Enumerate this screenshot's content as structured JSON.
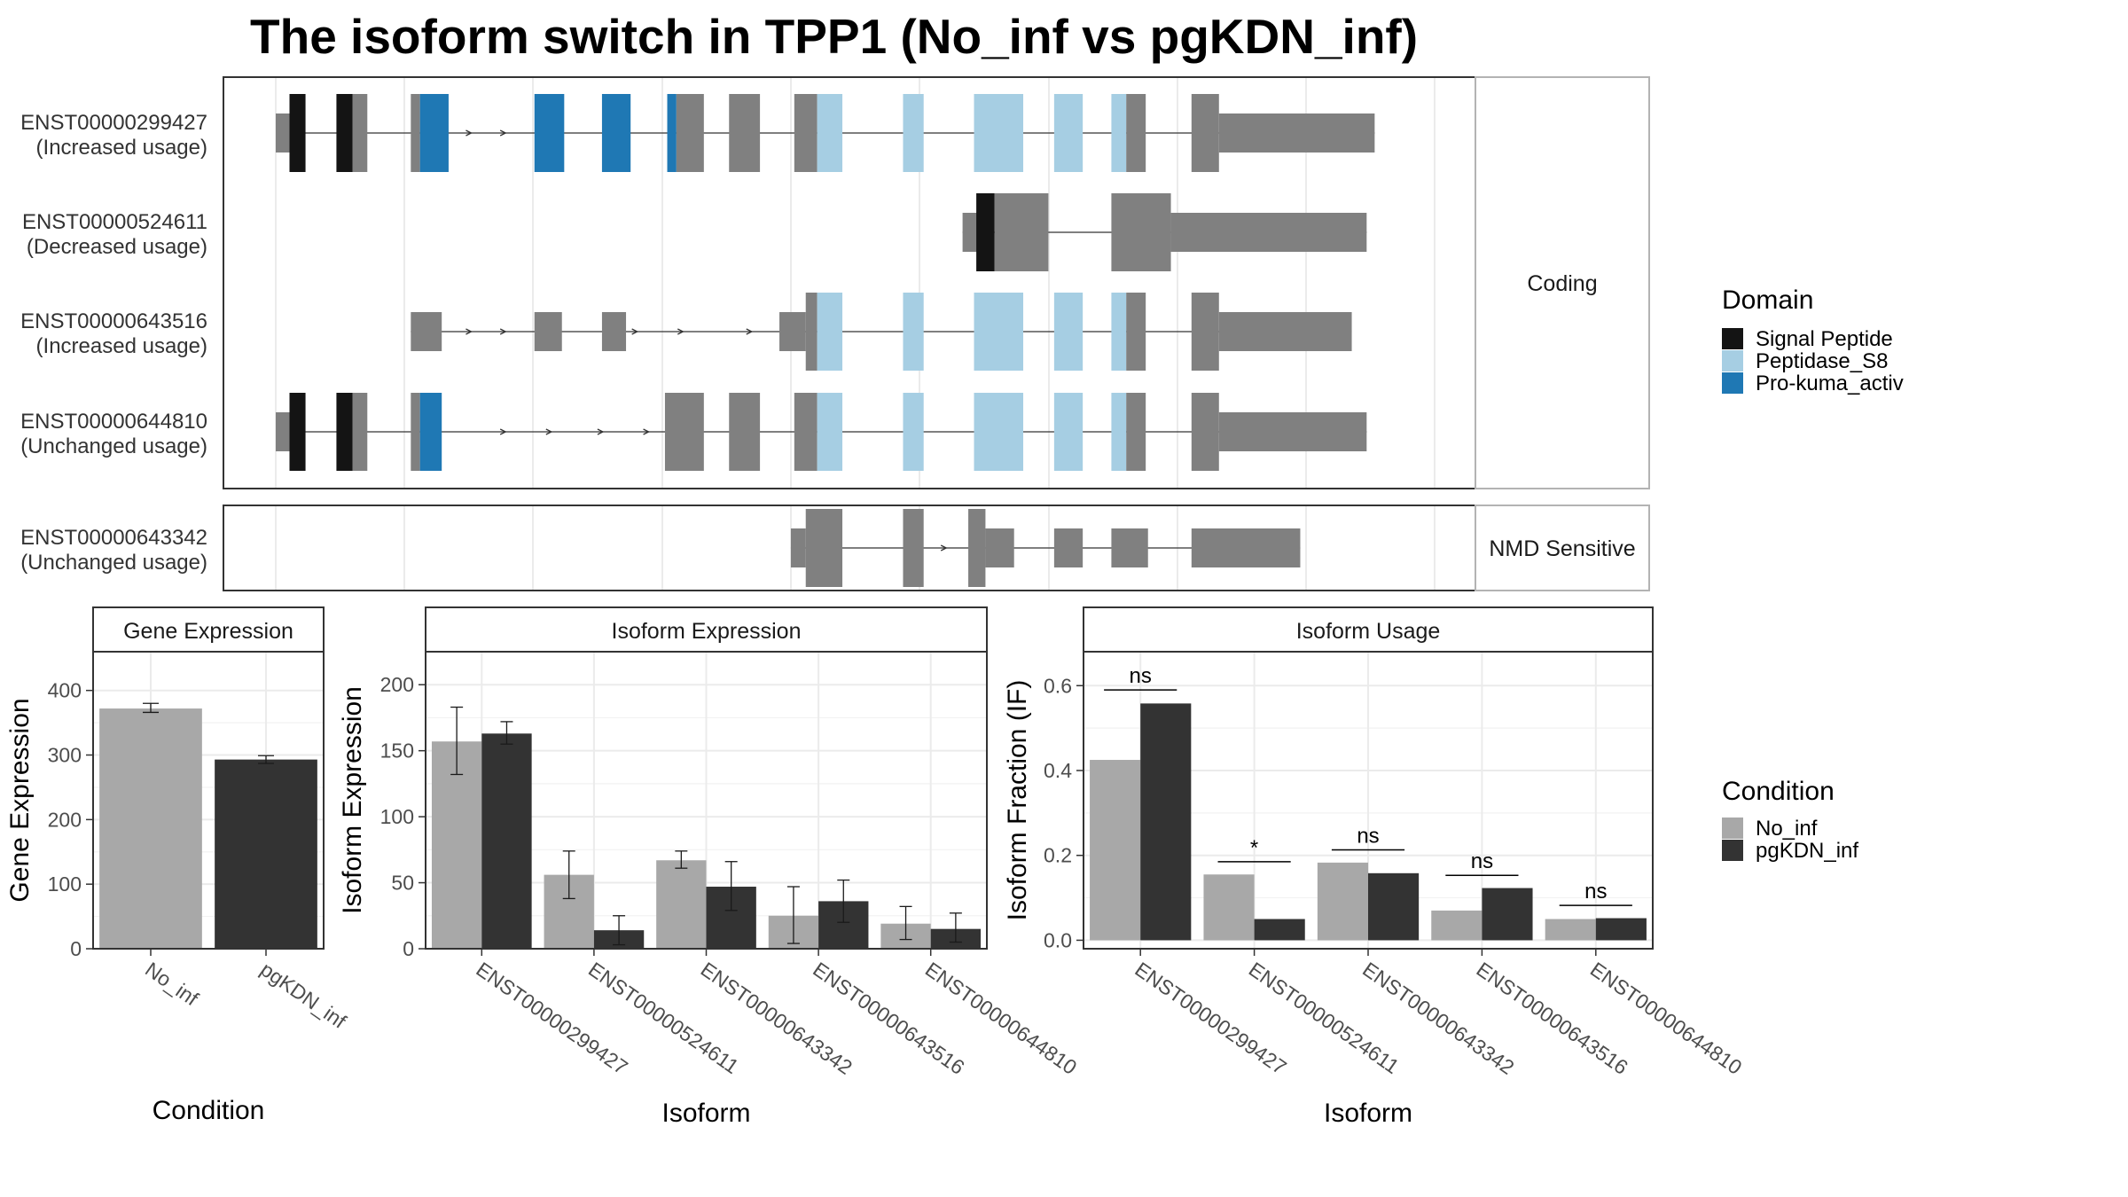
{
  "title": "The isoform switch in TPP1 (No_inf vs pgKDN_inf)",
  "colors": {
    "signal_peptide": "#141414",
    "peptidase_s8": "#a6cee3",
    "pro_kuma_activ": "#1f78b4",
    "exon": "#808080",
    "no_inf": "#a8a8a8",
    "pgkdn_inf": "#333333"
  },
  "structure": {
    "x_range": [
      0,
      100
    ],
    "groups": [
      {
        "label": "Coding",
        "transcripts": [
          {
            "id": "ENST00000299427",
            "usage": "(Increased usage)",
            "exons": [
              {
                "s": 0.0,
                "e": 2.1,
                "t": "utr"
              },
              {
                "s": 1.2,
                "e": 2.6,
                "t": "cds",
                "d": "sig"
              },
              {
                "s": 5.3,
                "e": 6.7,
                "t": "cds",
                "d": "sig"
              },
              {
                "s": 6.7,
                "e": 8.0,
                "t": "cds"
              },
              {
                "s": 11.8,
                "e": 12.6,
                "t": "cds"
              },
              {
                "s": 12.6,
                "e": 15.1,
                "t": "cds",
                "d": "pro"
              },
              {
                "s": 22.6,
                "e": 25.2,
                "t": "cds",
                "d": "pro"
              },
              {
                "s": 28.5,
                "e": 31.0,
                "t": "cds",
                "d": "pro"
              },
              {
                "s": 34.2,
                "e": 35.0,
                "t": "cds",
                "d": "pro"
              },
              {
                "s": 35.0,
                "e": 37.4,
                "t": "cds"
              },
              {
                "s": 39.6,
                "e": 42.3,
                "t": "cds"
              },
              {
                "s": 45.3,
                "e": 47.3,
                "t": "cds"
              },
              {
                "s": 47.3,
                "e": 49.5,
                "t": "cds",
                "d": "pep"
              },
              {
                "s": 54.8,
                "e": 56.6,
                "t": "cds",
                "d": "pep"
              },
              {
                "s": 61.0,
                "e": 65.3,
                "t": "cds",
                "d": "pep"
              },
              {
                "s": 68.0,
                "e": 70.5,
                "t": "cds",
                "d": "pep"
              },
              {
                "s": 73.0,
                "e": 74.3,
                "t": "cds",
                "d": "pep"
              },
              {
                "s": 74.3,
                "e": 76.0,
                "t": "cds"
              },
              {
                "s": 80.0,
                "e": 82.4,
                "t": "cds"
              },
              {
                "s": 82.4,
                "e": 96.0,
                "t": "utr"
              }
            ],
            "arrows": [
              17,
              20
            ]
          },
          {
            "id": "ENST00000524611",
            "usage": "(Decreased usage)",
            "exons": [
              {
                "s": 60.0,
                "e": 62.0,
                "t": "utr"
              },
              {
                "s": 61.2,
                "e": 62.8,
                "t": "cds",
                "d": "sig"
              },
              {
                "s": 62.8,
                "e": 67.5,
                "t": "cds"
              },
              {
                "s": 73.0,
                "e": 78.2,
                "t": "cds"
              },
              {
                "s": 78.2,
                "e": 95.3,
                "t": "utr"
              }
            ],
            "arrows": []
          },
          {
            "id": "ENST00000643516",
            "usage": "(Increased usage)",
            "exons": [
              {
                "s": 11.8,
                "e": 14.5,
                "t": "utr"
              },
              {
                "s": 22.6,
                "e": 25.0,
                "t": "utr"
              },
              {
                "s": 28.5,
                "e": 30.6,
                "t": "utr"
              },
              {
                "s": 44.0,
                "e": 46.3,
                "t": "utr"
              },
              {
                "s": 46.3,
                "e": 47.3,
                "t": "cds"
              },
              {
                "s": 47.3,
                "e": 49.5,
                "t": "cds",
                "d": "pep"
              },
              {
                "s": 54.8,
                "e": 56.6,
                "t": "cds",
                "d": "pep"
              },
              {
                "s": 61.0,
                "e": 65.3,
                "t": "cds",
                "d": "pep"
              },
              {
                "s": 68.0,
                "e": 70.5,
                "t": "cds",
                "d": "pep"
              },
              {
                "s": 73.0,
                "e": 74.3,
                "t": "cds",
                "d": "pep"
              },
              {
                "s": 74.3,
                "e": 76.0,
                "t": "cds"
              },
              {
                "s": 80.0,
                "e": 82.4,
                "t": "cds"
              },
              {
                "s": 82.4,
                "e": 94.0,
                "t": "utr"
              }
            ],
            "arrows": [
              17,
              20,
              31.5,
              35.5,
              41.5
            ]
          },
          {
            "id": "ENST00000644810",
            "usage": "(Unchanged usage)",
            "exons": [
              {
                "s": 0.0,
                "e": 2.1,
                "t": "utr"
              },
              {
                "s": 1.2,
                "e": 2.6,
                "t": "cds",
                "d": "sig"
              },
              {
                "s": 5.3,
                "e": 6.7,
                "t": "cds",
                "d": "sig"
              },
              {
                "s": 6.7,
                "e": 8.0,
                "t": "cds"
              },
              {
                "s": 11.8,
                "e": 12.6,
                "t": "cds"
              },
              {
                "s": 12.6,
                "e": 14.5,
                "t": "cds",
                "d": "pro"
              },
              {
                "s": 34.0,
                "e": 37.4,
                "t": "cds"
              },
              {
                "s": 39.6,
                "e": 42.3,
                "t": "cds"
              },
              {
                "s": 45.3,
                "e": 47.3,
                "t": "cds"
              },
              {
                "s": 47.3,
                "e": 49.5,
                "t": "cds",
                "d": "pep"
              },
              {
                "s": 54.8,
                "e": 56.6,
                "t": "cds",
                "d": "pep"
              },
              {
                "s": 61.0,
                "e": 65.3,
                "t": "cds",
                "d": "pep"
              },
              {
                "s": 68.0,
                "e": 70.5,
                "t": "cds",
                "d": "pep"
              },
              {
                "s": 73.0,
                "e": 74.3,
                "t": "cds",
                "d": "pep"
              },
              {
                "s": 74.3,
                "e": 76.0,
                "t": "cds"
              },
              {
                "s": 80.0,
                "e": 82.4,
                "t": "cds"
              },
              {
                "s": 82.4,
                "e": 95.3,
                "t": "utr"
              }
            ],
            "arrows": [
              20,
              24,
              28.5,
              32.5
            ]
          }
        ]
      },
      {
        "label": "NMD Sensitive",
        "transcripts": [
          {
            "id": "ENST00000643342",
            "usage": "(Unchanged usage)",
            "exons": [
              {
                "s": 45.0,
                "e": 46.3,
                "t": "utr"
              },
              {
                "s": 46.3,
                "e": 49.5,
                "t": "cds"
              },
              {
                "s": 54.8,
                "e": 56.6,
                "t": "cds"
              },
              {
                "s": 60.5,
                "e": 62.0,
                "t": "cds"
              },
              {
                "s": 62.0,
                "e": 64.5,
                "t": "utr"
              },
              {
                "s": 68.0,
                "e": 70.5,
                "t": "utr"
              },
              {
                "s": 73.0,
                "e": 76.2,
                "t": "utr"
              },
              {
                "s": 80.0,
                "e": 89.5,
                "t": "utr"
              }
            ],
            "arrows": [
              58.5,
              61.8
            ]
          }
        ]
      }
    ]
  },
  "legends": {
    "domain": {
      "title": "Domain",
      "items": [
        {
          "label": "Signal Peptide",
          "color": "#141414"
        },
        {
          "label": "Peptidase_S8",
          "color": "#a6cee3"
        },
        {
          "label": "Pro-kuma_activ",
          "color": "#1f78b4"
        }
      ]
    },
    "condition": {
      "title": "Condition",
      "items": [
        {
          "label": "No_inf",
          "color": "#a8a8a8"
        },
        {
          "label": "pgKDN_inf",
          "color": "#333333"
        }
      ]
    }
  },
  "chart_data": [
    {
      "type": "bar",
      "title": "Gene Expression",
      "xlabel": "Condition",
      "ylabel": "Gene Expression",
      "categories": [
        "No_inf",
        "pgKDN_inf"
      ],
      "values": [
        372,
        293
      ],
      "errors": [
        [
          366,
          380
        ],
        [
          287,
          299
        ]
      ],
      "colors": [
        "#a8a8a8",
        "#333333"
      ],
      "ylim": [
        0,
        460
      ],
      "yticks": [
        0,
        100,
        200,
        300,
        400
      ]
    },
    {
      "type": "bar",
      "title": "Isoform Expression",
      "xlabel": "Isoform",
      "ylabel": "Isoform Expression",
      "categories": [
        "ENST00000299427",
        "ENST00000524611",
        "ENST00000643342",
        "ENST00000643516",
        "ENST00000644810"
      ],
      "series": [
        {
          "name": "No_inf",
          "values": [
            157,
            56,
            67,
            25,
            19
          ],
          "errors": [
            [
              132,
              183
            ],
            [
              38,
              74
            ],
            [
              61,
              74
            ],
            [
              4,
              47
            ],
            [
              7,
              32
            ]
          ]
        },
        {
          "name": "pgKDN_inf",
          "values": [
            163,
            14,
            47,
            36,
            15
          ],
          "errors": [
            [
              155,
              172
            ],
            [
              3,
              25
            ],
            [
              29,
              66
            ],
            [
              20,
              52
            ],
            [
              5,
              27
            ]
          ]
        }
      ],
      "ylim": [
        0,
        225
      ],
      "yticks": [
        0,
        50,
        100,
        150,
        200
      ]
    },
    {
      "type": "bar",
      "title": "Isoform Usage",
      "xlabel": "Isoform",
      "ylabel": "Isoform Fraction (IF)",
      "categories": [
        "ENST00000299427",
        "ENST00000524611",
        "ENST00000643342",
        "ENST00000643516",
        "ENST00000644810"
      ],
      "series": [
        {
          "name": "No_inf",
          "values": [
            0.425,
            0.155,
            0.183,
            0.07,
            0.05
          ]
        },
        {
          "name": "pgKDN_inf",
          "values": [
            0.558,
            0.05,
            0.158,
            0.123,
            0.052
          ]
        }
      ],
      "significance": [
        "ns",
        "*",
        "ns",
        "ns",
        "ns"
      ],
      "sig_y": [
        0.59,
        0.185,
        0.213,
        0.153,
        0.082
      ],
      "ylim": [
        -0.02,
        0.68
      ],
      "yticks": [
        0.0,
        0.2,
        0.4,
        0.6
      ]
    }
  ]
}
